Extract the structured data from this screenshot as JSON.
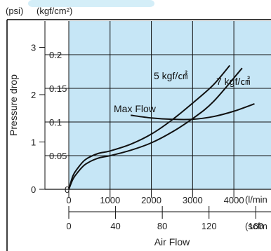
{
  "chart_data": {
    "type": "line",
    "left_units": {
      "psi": "(psi)",
      "kgf": "(kgf/cm²)"
    },
    "ylabel": "Pressure drop",
    "xlabel": "Air Flow",
    "x_unit_lmin": "(l/min",
    "x_unit_scfm": "(scfm",
    "ylim": [
      0,
      0.25
    ],
    "xlim": [
      0,
      4900
    ],
    "y_ticks_kgf": [
      "0",
      "0.05",
      "0.1",
      "0.15",
      "0.2"
    ],
    "y_ticks_kgf_values": [
      0,
      0.05,
      0.1,
      0.15,
      0.2
    ],
    "y_ticks_psi": [
      "0",
      "1",
      "2",
      "3"
    ],
    "y_ticks_psi_values": [
      0,
      1,
      2,
      3
    ],
    "x_ticks_lmin": [
      "0",
      "1000",
      "2000",
      "3000",
      "4000"
    ],
    "x_ticks_lmin_values": [
      0,
      1000,
      2000,
      3000,
      4000
    ],
    "x_ticks_scfm": [
      "0",
      "40",
      "80",
      "120",
      "160"
    ],
    "x_ticks_scfm_values": [
      0,
      40,
      80,
      120,
      160
    ],
    "grid": true,
    "series": [
      {
        "name": "5 kgf/㎠",
        "x": [
          0,
          100,
          200,
          400,
          700,
          1000,
          1500,
          2000,
          2500,
          3000,
          3500,
          3900
        ],
        "y": [
          0,
          0.02,
          0.03,
          0.044,
          0.053,
          0.057,
          0.067,
          0.082,
          0.103,
          0.128,
          0.155,
          0.184
        ]
      },
      {
        "name": "7 kgf/㎠",
        "x": [
          0,
          100,
          200,
          400,
          700,
          1000,
          1500,
          2000,
          2500,
          3000,
          3500,
          4200
        ],
        "y": [
          0,
          0.015,
          0.024,
          0.037,
          0.046,
          0.05,
          0.058,
          0.069,
          0.085,
          0.105,
          0.13,
          0.18
        ]
      },
      {
        "name": "Max Flow",
        "x": [
          1500,
          2000,
          2500,
          3000,
          3500,
          4000,
          4500
        ],
        "y": [
          0.11,
          0.106,
          0.104,
          0.104,
          0.108,
          0.116,
          0.127
        ]
      }
    ]
  }
}
